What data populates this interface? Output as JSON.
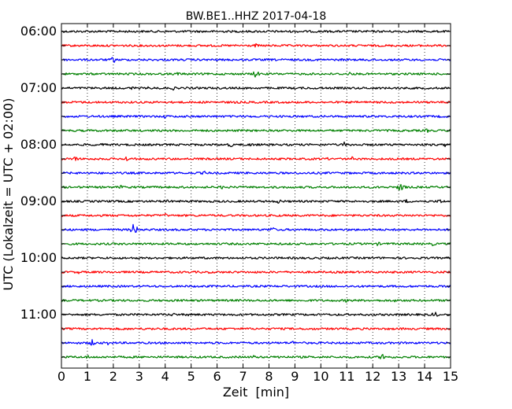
{
  "chart_data": {
    "type": "line",
    "title": "BW.BE1..HHZ 2017-04-18",
    "xlabel": "Zeit  [min]",
    "ylabel": "UTC (Lokalzeit = UTC + 02:00)",
    "xlim": [
      0,
      15
    ],
    "x_ticks": [
      "0",
      "1",
      "2",
      "3",
      "4",
      "5",
      "6",
      "7",
      "8",
      "9",
      "10",
      "11",
      "12",
      "13",
      "14",
      "15"
    ],
    "grid": "vertical dotted lines at each minute",
    "line_interval_minutes": 15,
    "line_colors": [
      "#000000",
      "#ff0000",
      "#0000ff",
      "#008000"
    ],
    "series": [
      {
        "start": "06:00",
        "label": "06:00",
        "color": "#000000",
        "events": [
          {
            "t": 1.3,
            "amp": 2
          }
        ]
      },
      {
        "start": "06:15",
        "label": "",
        "color": "#ff0000",
        "events": [
          {
            "t": 7.5,
            "amp": 3
          },
          {
            "t": 11.4,
            "amp": 2
          }
        ]
      },
      {
        "start": "06:30",
        "label": "",
        "color": "#0000ff",
        "events": [
          {
            "t": 2.0,
            "amp": 5
          },
          {
            "t": 6.0,
            "amp": 2
          },
          {
            "t": 10.8,
            "amp": 2
          },
          {
            "t": 11.8,
            "amp": 3
          }
        ]
      },
      {
        "start": "06:45",
        "label": "",
        "color": "#008000",
        "events": [
          {
            "t": 4.5,
            "amp": 3
          },
          {
            "t": 7.5,
            "amp": 6
          },
          {
            "t": 11.1,
            "amp": 3
          }
        ]
      },
      {
        "start": "07:00",
        "label": "07:00",
        "color": "#000000",
        "events": [
          {
            "t": 2.7,
            "amp": 3
          },
          {
            "t": 3.4,
            "amp": 3
          },
          {
            "t": 4.3,
            "amp": 3
          }
        ]
      },
      {
        "start": "07:15",
        "label": "",
        "color": "#ff0000",
        "events": [
          {
            "t": 5.8,
            "amp": 2
          },
          {
            "t": 6.7,
            "amp": 2
          },
          {
            "t": 13.0,
            "amp": 2
          }
        ]
      },
      {
        "start": "07:30",
        "label": "",
        "color": "#0000ff",
        "events": [
          {
            "t": 4.0,
            "amp": 3
          },
          {
            "t": 14.6,
            "amp": 2
          }
        ]
      },
      {
        "start": "07:45",
        "label": "",
        "color": "#008000",
        "events": [
          {
            "t": 14.1,
            "amp": 3
          }
        ]
      },
      {
        "start": "08:00",
        "label": "08:00",
        "color": "#000000",
        "events": [
          {
            "t": 1.6,
            "amp": 3
          },
          {
            "t": 6.5,
            "amp": 4
          },
          {
            "t": 7.3,
            "amp": 3
          },
          {
            "t": 10.9,
            "amp": 4
          },
          {
            "t": 14.8,
            "amp": 3
          }
        ]
      },
      {
        "start": "08:15",
        "label": "",
        "color": "#ff0000",
        "events": [
          {
            "t": 0.5,
            "amp": 5
          },
          {
            "t": 2.5,
            "amp": 4
          },
          {
            "t": 10.2,
            "amp": 3
          },
          {
            "t": 11.2,
            "amp": 3
          }
        ]
      },
      {
        "start": "08:30",
        "label": "",
        "color": "#0000ff",
        "events": [
          {
            "t": 5.5,
            "amp": 3
          }
        ]
      },
      {
        "start": "08:45",
        "label": "",
        "color": "#008000",
        "events": [
          {
            "t": 2.3,
            "amp": 3
          },
          {
            "t": 6.2,
            "amp": 3
          },
          {
            "t": 9.0,
            "amp": 2
          },
          {
            "t": 13.1,
            "amp": 8
          }
        ]
      },
      {
        "start": "09:00",
        "label": "09:00",
        "color": "#000000",
        "events": [
          {
            "t": 4.1,
            "amp": 3
          },
          {
            "t": 8.4,
            "amp": 4
          },
          {
            "t": 13.3,
            "amp": 3
          },
          {
            "t": 14.6,
            "amp": 4
          }
        ]
      },
      {
        "start": "09:15",
        "label": "",
        "color": "#ff0000",
        "events": [
          {
            "t": 4.0,
            "amp": 3
          },
          {
            "t": 8.3,
            "amp": 2
          }
        ]
      },
      {
        "start": "09:30",
        "label": "",
        "color": "#0000ff",
        "events": [
          {
            "t": 2.8,
            "amp": 10
          },
          {
            "t": 8.1,
            "amp": 5
          }
        ]
      },
      {
        "start": "09:45",
        "label": "",
        "color": "#008000",
        "events": [
          {
            "t": 12.2,
            "amp": 3
          },
          {
            "t": 14.3,
            "amp": 3
          }
        ]
      },
      {
        "start": "10:00",
        "label": "10:00",
        "color": "#000000",
        "events": [
          {
            "t": 9.1,
            "amp": 2
          },
          {
            "t": 12.0,
            "amp": 2
          }
        ]
      },
      {
        "start": "10:15",
        "label": "",
        "color": "#ff0000",
        "events": [
          {
            "t": 0.7,
            "amp": 3
          },
          {
            "t": 5.7,
            "amp": 2
          },
          {
            "t": 12.8,
            "amp": 2
          }
        ]
      },
      {
        "start": "10:30",
        "label": "",
        "color": "#0000ff",
        "events": [
          {
            "t": 8.9,
            "amp": 2
          }
        ]
      },
      {
        "start": "10:45",
        "label": "",
        "color": "#008000",
        "events": [
          {
            "t": 4.6,
            "amp": 3
          },
          {
            "t": 11.0,
            "amp": 3
          },
          {
            "t": 12.9,
            "amp": 3
          }
        ]
      },
      {
        "start": "11:00",
        "label": "11:00",
        "color": "#000000",
        "events": [
          {
            "t": 4.3,
            "amp": 3
          },
          {
            "t": 4.9,
            "amp": 3
          },
          {
            "t": 14.4,
            "amp": 5
          }
        ]
      },
      {
        "start": "11:15",
        "label": "",
        "color": "#ff0000",
        "events": [
          {
            "t": 2.4,
            "amp": 2
          },
          {
            "t": 3.5,
            "amp": 2
          }
        ]
      },
      {
        "start": "11:30",
        "label": "",
        "color": "#0000ff",
        "events": [
          {
            "t": 1.2,
            "amp": 5
          },
          {
            "t": 1.8,
            "amp": 3
          },
          {
            "t": 8.9,
            "amp": 3
          }
        ]
      },
      {
        "start": "11:45",
        "label": "",
        "color": "#008000",
        "events": [
          {
            "t": 1.0,
            "amp": 3
          },
          {
            "t": 7.4,
            "amp": 3
          },
          {
            "t": 8.4,
            "amp": 3
          },
          {
            "t": 12.4,
            "amp": 6
          }
        ]
      }
    ]
  }
}
